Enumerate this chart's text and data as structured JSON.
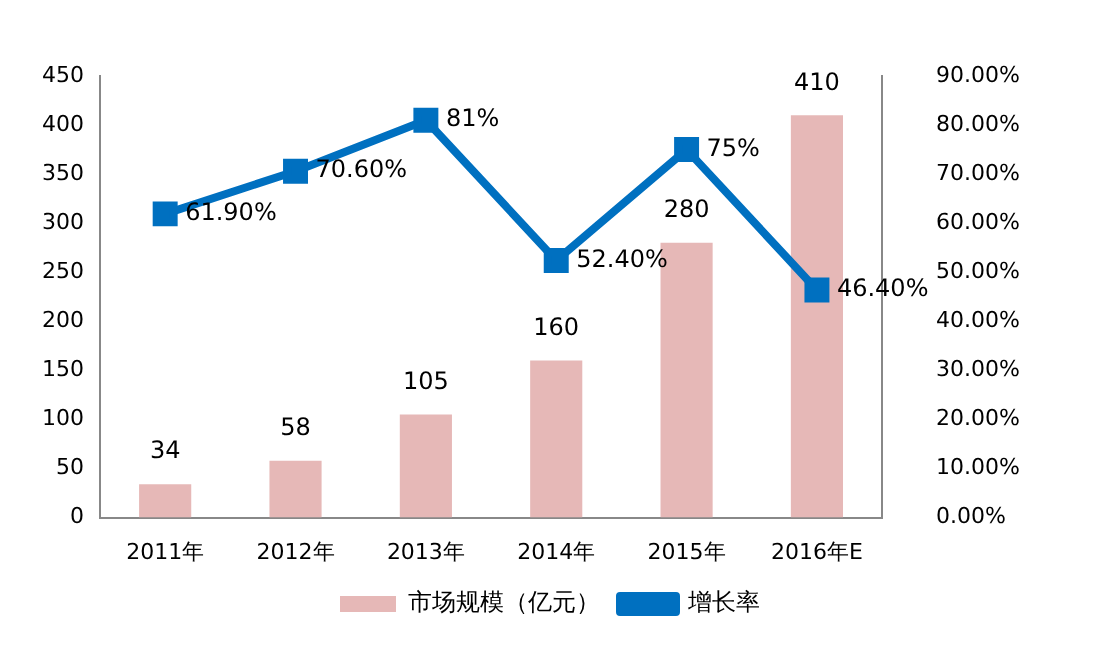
{
  "chart_data": {
    "type": "bar",
    "categories": [
      "2011年",
      "2012年",
      "2013年",
      "2014年",
      "2015年",
      "2016年E"
    ],
    "series": [
      {
        "name": "市场规模（亿元）",
        "color": "#e6b8b7",
        "values": [
          34,
          58,
          105,
          160,
          280,
          410
        ],
        "value_labels": [
          "34",
          "58",
          "105",
          "160",
          "280",
          "410"
        ]
      },
      {
        "name": "增长率",
        "type": "line",
        "axis": "y2",
        "color": "#0070c0",
        "marker": "square",
        "values": [
          61.9,
          70.6,
          81,
          52.4,
          75,
          46.4
        ],
        "value_labels": [
          "61.90%",
          "70.60%",
          "81%",
          "52.40%",
          "75%",
          "46.40%"
        ]
      }
    ],
    "ylim": [
      0,
      450
    ],
    "yticks": [
      0,
      50,
      100,
      150,
      200,
      250,
      300,
      350,
      400,
      450
    ],
    "y2lim": [
      0,
      90
    ],
    "y2ticks": [
      {
        "value": 0,
        "label": "0.00%"
      },
      {
        "value": 10,
        "label": "10.00%"
      },
      {
        "value": 20,
        "label": "20.00%"
      },
      {
        "value": 30,
        "label": "30.00%"
      },
      {
        "value": 40,
        "label": "40.00%"
      },
      {
        "value": 50,
        "label": "50.00%"
      },
      {
        "value": 60,
        "label": "60.00%"
      },
      {
        "value": 70,
        "label": "70.00%"
      },
      {
        "value": 80,
        "label": "80.00%"
      },
      {
        "value": 90,
        "label": "90.00%"
      }
    ],
    "grid": false,
    "legend": "bottom"
  }
}
